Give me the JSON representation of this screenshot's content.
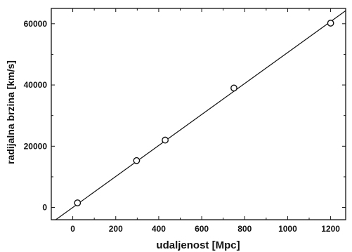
{
  "chart_data": {
    "type": "scatter",
    "xlabel": "udaljenost [Mpc]",
    "ylabel": "radijalna brzina [km/s]",
    "xlim": [
      -100,
      1270
    ],
    "ylim": [
      -4000,
      65000
    ],
    "xticks": [
      0,
      200,
      400,
      600,
      800,
      1000,
      1200
    ],
    "yticks": [
      0,
      20000,
      40000,
      60000
    ],
    "grid": false,
    "points": [
      {
        "x": 22,
        "y": 1500
      },
      {
        "x": 297,
        "y": 15300
      },
      {
        "x": 430,
        "y": 22000
      },
      {
        "x": 750,
        "y": 39000
      },
      {
        "x": 1200,
        "y": 60200
      }
    ],
    "fit_line": {
      "slope": 50.6,
      "intercept": 0
    }
  }
}
